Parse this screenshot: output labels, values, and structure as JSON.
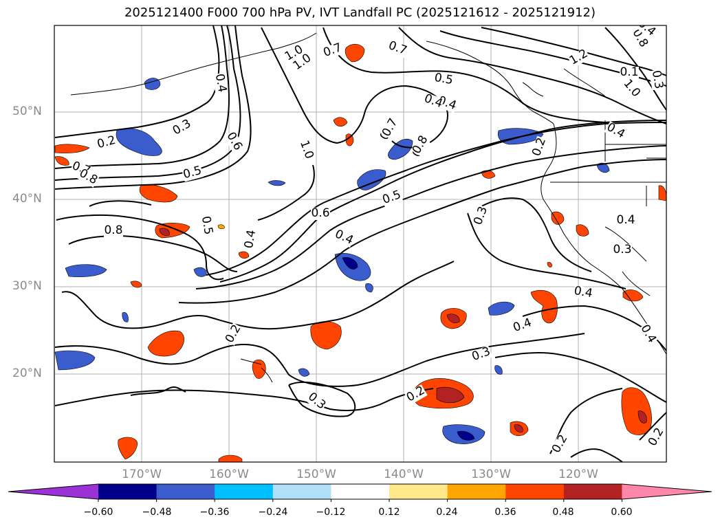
{
  "title": "2025121400 F000 700 hPa PV, IVT Landfall PC (2025121612 - 2025121912)",
  "lat_labels": [
    "50°N",
    "40°N",
    "30°N",
    "20°N"
  ],
  "lon_labels": [
    "170°W",
    "160°W",
    "150°W",
    "140°W",
    "130°W",
    "120°W"
  ],
  "colorbar": {
    "colors": [
      "#9b32d6",
      "#00008b",
      "#3a5ccc",
      "#00bfff",
      "#b0e0f8",
      "#ffffff",
      "#ffe88a",
      "#ffa500",
      "#ff4500",
      "#b22222",
      "#ff88aa"
    ],
    "tick_labels": [
      "−0.60",
      "−0.48",
      "−0.36",
      "−0.24",
      "−0.12",
      "0.12",
      "0.24",
      "0.36",
      "0.48",
      "0.60"
    ]
  },
  "contour_labels": [
    "1.0",
    "0.7",
    "0.7",
    "1.0",
    "1.2",
    "0.8",
    "0.4",
    "0.5",
    "0.4",
    "0.7",
    "0.8",
    "0.3",
    "0.2",
    "0.6",
    "1.0",
    "0.7",
    "0.8",
    "0.5",
    "0.5",
    "0.6",
    "0.5",
    "0.4",
    "0.8",
    "0.4",
    "0.3",
    "0.4",
    "0.3",
    "0.4",
    "0.4",
    "0.2",
    "0.3",
    "0.2",
    "0.3",
    "0.2",
    "0.2",
    "0.4",
    "0.4",
    "0.2",
    "1.0",
    "0.4",
    "0.4",
    "0.3",
    "0.7",
    "0.8",
    "0.1"
  ],
  "map": {
    "lat_range": [
      10,
      60
    ],
    "lon_range": [
      -180,
      -110
    ],
    "region": "North Pacific / US West Coast"
  }
}
